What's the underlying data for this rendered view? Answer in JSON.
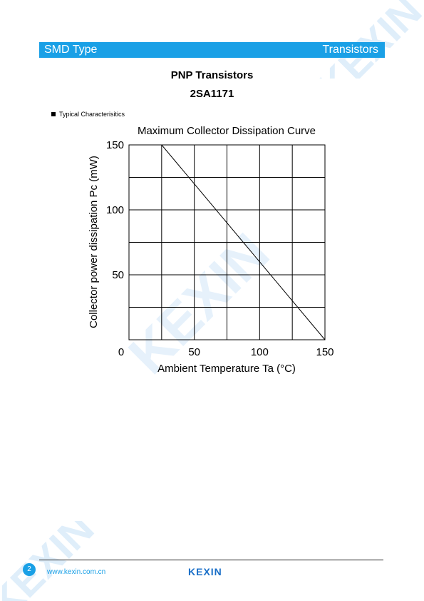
{
  "header": {
    "left_label": "SMD Type",
    "right_label": "Transistors",
    "bar_color": "#1aa0e6"
  },
  "title": {
    "product_type": "PNP  Transistors",
    "part_number": "2SA1171"
  },
  "section_label": "Typical  Characterisitics",
  "chart_data": {
    "type": "line",
    "title": "Maximum Collector Dissipation Curve",
    "xlabel": "Ambient Temperature  Ta  (°C)",
    "ylabel": "Collector power dissipation  Pc  (mW)",
    "xlim": [
      0,
      150
    ],
    "ylim": [
      0,
      150
    ],
    "x_ticks": [
      0,
      50,
      100,
      150
    ],
    "y_ticks": [
      50,
      100,
      150
    ],
    "x_tick_labels": [
      "0",
      "50",
      "100",
      "150"
    ],
    "y_tick_labels": [
      "50",
      "100",
      "150"
    ],
    "grid": true,
    "x_grid_step": 25,
    "y_grid_step": 25,
    "series": [
      {
        "x": [
          0,
          25,
          150
        ],
        "y": [
          150,
          150,
          0
        ],
        "color": "#000000"
      }
    ]
  },
  "watermark_text": "KEXIN",
  "footer": {
    "page_number": "2",
    "url": "www.kexin.com.cn",
    "brand": "KEXIN"
  }
}
